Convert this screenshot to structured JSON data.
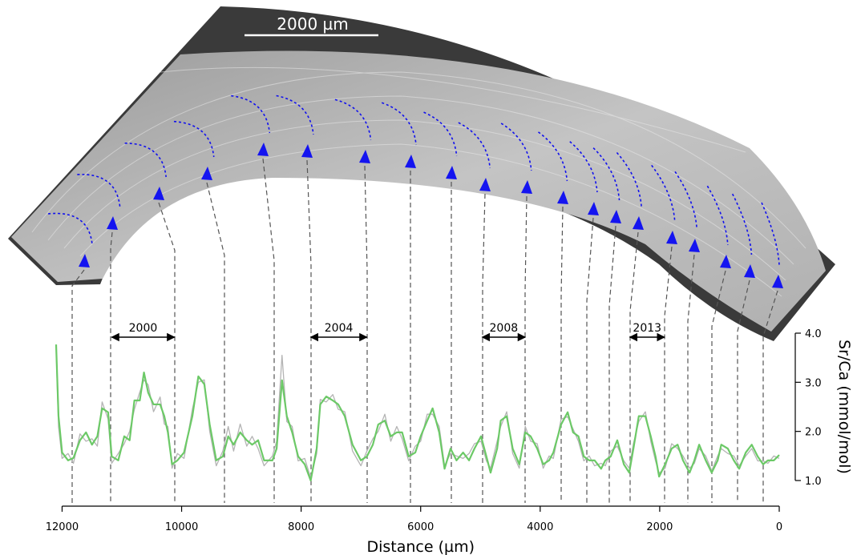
{
  "image": {
    "scale_bar": "2000 µm"
  },
  "chart_data": {
    "type": "line",
    "xlabel": "Distance (µm)",
    "ylabel": "Sr/Ca (mmol/mol)",
    "xlim": [
      12100,
      0
    ],
    "xticks": [
      12000,
      10000,
      8000,
      6000,
      4000,
      2000,
      0
    ],
    "ylim": [
      1,
      4
    ],
    "yticks": [
      {
        "value": 4,
        "label": "4.0"
      },
      {
        "value": 3,
        "label": "3.0"
      },
      {
        "value": 2,
        "label": "2.0"
      },
      {
        "value": 1,
        "label": "1.0"
      }
    ],
    "annotations": [
      {
        "text": "2000",
        "x": [
          11170,
          10120
        ]
      },
      {
        "text": "2004",
        "x": [
          7840,
          6900
        ]
      },
      {
        "text": "2008",
        "x": [
          4970,
          4250
        ]
      },
      {
        "text": "2013",
        "x": [
          2500,
          1920
        ]
      }
    ],
    "x": [
      12100,
      12060,
      12000,
      11900,
      11810,
      11700,
      11600,
      11500,
      11410,
      11330,
      11230,
      11170,
      11060,
      10960,
      10870,
      10790,
      10700,
      10630,
      10560,
      10470,
      10360,
      10290,
      10230,
      10160,
      10070,
      9960,
      9820,
      9720,
      9620,
      9530,
      9420,
      9310,
      9220,
      9130,
      9020,
      8910,
      8820,
      8720,
      8620,
      8480,
      8410,
      8320,
      8240,
      8150,
      8050,
      7940,
      7840,
      7740,
      7680,
      7580,
      7470,
      7380,
      7270,
      7140,
      7000,
      6900,
      6800,
      6710,
      6600,
      6500,
      6400,
      6310,
      6200,
      6090,
      6000,
      5890,
      5800,
      5690,
      5600,
      5500,
      5400,
      5290,
      5190,
      5100,
      4990,
      4900,
      4830,
      4720,
      4660,
      4560,
      4460,
      4350,
      4250,
      4160,
      4050,
      3950,
      3850,
      3780,
      3650,
      3540,
      3450,
      3360,
      3270,
      3180,
      3090,
      2980,
      2910,
      2820,
      2710,
      2600,
      2510,
      2440,
      2350,
      2240,
      2150,
      2070,
      2010,
      1910,
      1800,
      1700,
      1610,
      1500,
      1420,
      1340,
      1230,
      1130,
      1030,
      970,
      860,
      760,
      670,
      560,
      460,
      360,
      270,
      190,
      90,
      0
    ],
    "series": [
      {
        "color": "#b4b4b4",
        "values": [
          3.7,
          2.1,
          1.45,
          1.55,
          1.35,
          1.95,
          1.8,
          1.85,
          1.7,
          2.6,
          2.25,
          1.35,
          1.55,
          1.75,
          2.0,
          2.45,
          2.8,
          3.05,
          2.95,
          2.4,
          2.7,
          2.15,
          2.1,
          1.25,
          1.55,
          1.45,
          2.45,
          3.0,
          3.05,
          2.0,
          1.3,
          1.6,
          2.1,
          1.6,
          2.15,
          1.7,
          1.9,
          1.65,
          1.3,
          1.5,
          1.8,
          3.55,
          2.2,
          2.1,
          1.4,
          1.45,
          1.05,
          1.55,
          2.65,
          2.6,
          2.75,
          2.45,
          2.4,
          1.6,
          1.3,
          1.6,
          1.85,
          2.0,
          2.35,
          1.8,
          2.1,
          1.85,
          1.4,
          1.7,
          1.8,
          2.35,
          2.35,
          2.1,
          1.3,
          1.55,
          1.5,
          1.45,
          1.55,
          1.75,
          1.8,
          1.4,
          1.25,
          1.8,
          2.1,
          2.4,
          1.55,
          1.25,
          2.1,
          1.8,
          1.75,
          1.25,
          1.5,
          1.45,
          2.25,
          2.3,
          2.05,
          1.8,
          1.4,
          1.5,
          1.3,
          1.35,
          1.3,
          1.6,
          1.7,
          1.4,
          1.25,
          1.75,
          2.2,
          2.4,
          1.8,
          1.4,
          1.15,
          1.25,
          1.75,
          1.65,
          1.5,
          1.25,
          1.35,
          1.65,
          1.5,
          1.2,
          1.5,
          1.65,
          1.55,
          1.5,
          1.3,
          1.5,
          1.65,
          1.4,
          1.4,
          1.35,
          1.5,
          1.45
        ]
      },
      {
        "color": "#6cc967",
        "values": [
          3.77,
          2.31,
          1.57,
          1.41,
          1.46,
          1.82,
          1.98,
          1.73,
          1.9,
          2.47,
          2.39,
          1.49,
          1.41,
          1.9,
          1.82,
          2.63,
          2.63,
          3.2,
          2.79,
          2.55,
          2.55,
          2.31,
          1.98,
          1.33,
          1.41,
          1.57,
          2.31,
          3.12,
          2.96,
          2.14,
          1.41,
          1.49,
          1.9,
          1.73,
          1.98,
          1.82,
          1.73,
          1.82,
          1.41,
          1.41,
          1.65,
          3.04,
          2.31,
          1.98,
          1.49,
          1.33,
          1.0,
          1.65,
          2.55,
          2.71,
          2.63,
          2.55,
          2.31,
          1.73,
          1.41,
          1.49,
          1.73,
          2.14,
          2.22,
          1.9,
          1.98,
          1.98,
          1.49,
          1.57,
          1.9,
          2.22,
          2.47,
          1.98,
          1.24,
          1.65,
          1.41,
          1.57,
          1.41,
          1.65,
          1.9,
          1.49,
          1.16,
          1.65,
          2.22,
          2.31,
          1.65,
          1.33,
          1.98,
          1.9,
          1.65,
          1.33,
          1.41,
          1.57,
          2.14,
          2.39,
          1.98,
          1.9,
          1.49,
          1.41,
          1.41,
          1.24,
          1.41,
          1.49,
          1.82,
          1.33,
          1.16,
          1.65,
          2.31,
          2.31,
          1.9,
          1.49,
          1.08,
          1.33,
          1.65,
          1.73,
          1.41,
          1.16,
          1.41,
          1.73,
          1.41,
          1.16,
          1.41,
          1.73,
          1.65,
          1.41,
          1.24,
          1.57,
          1.73,
          1.49,
          1.33,
          1.41,
          1.41,
          1.52
        ]
      }
    ]
  }
}
